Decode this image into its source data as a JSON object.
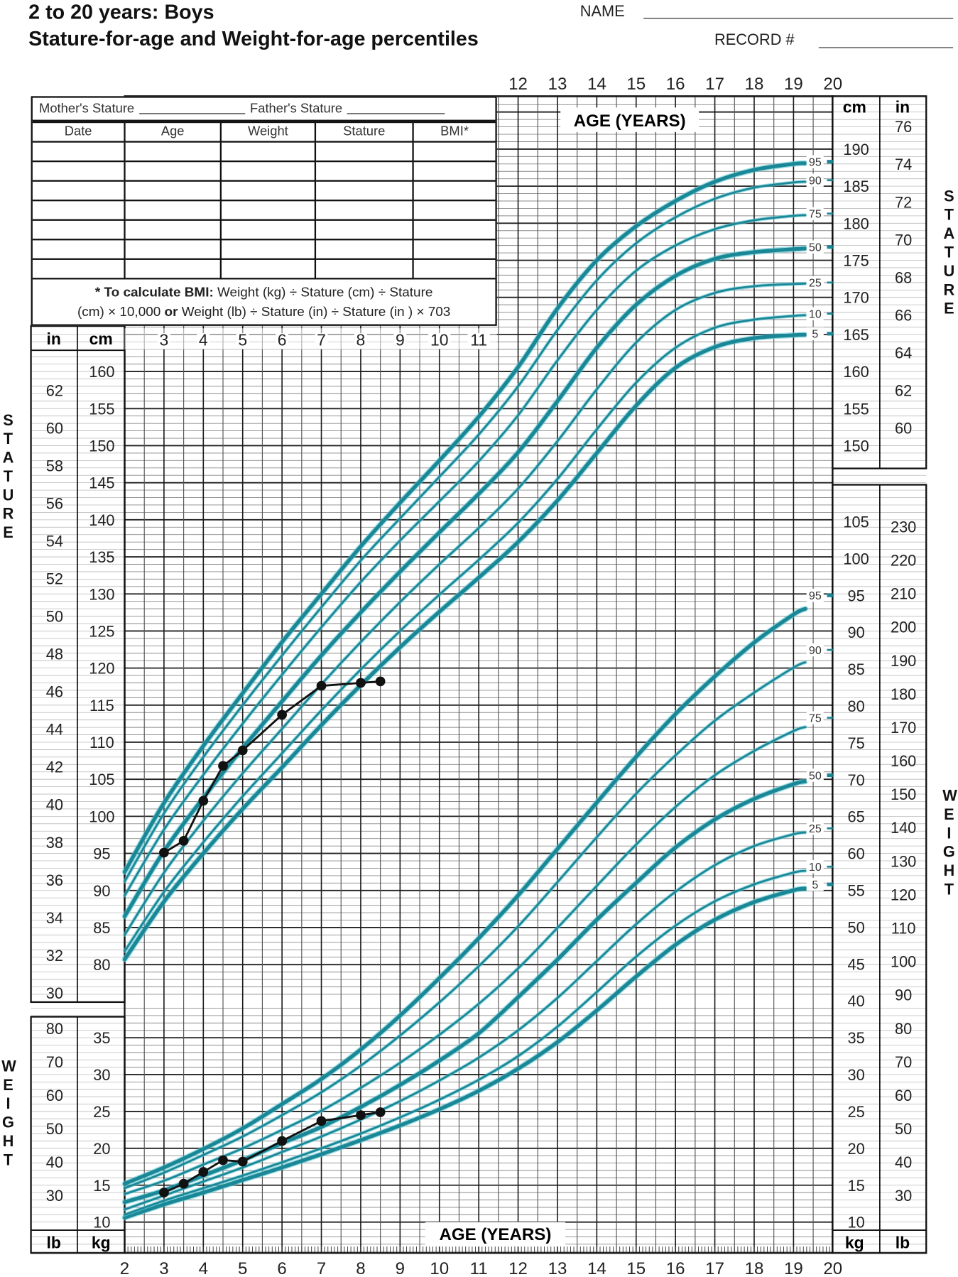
{
  "header": {
    "title_line1": "2 to 20 years: Boys",
    "title_line2": "Stature-for-age and Weight-for-age percentiles",
    "name_label": "NAME",
    "record_label": "RECORD #"
  },
  "table": {
    "mother_label": "Mother's Stature",
    "father_label": "Father's Stature",
    "columns": [
      "Date",
      "Age",
      "Weight",
      "Stature",
      "BMI*"
    ],
    "bmi_note_bold": "* To calculate BMI:",
    "bmi_note_line1": " Weight (kg) ÷ Stature (cm) ÷ Stature",
    "bmi_note_line2a": "(cm) × 10,000 ",
    "bmi_note_or": "or",
    "bmi_note_line2b": " Weight (lb) ÷ Stature (in) ÷ Stature (in ) × 703"
  },
  "labels": {
    "age_years_top": "AGE (YEARS)",
    "age_years_bottom": "AGE (YEARS)",
    "unit_in": "in",
    "unit_cm": "cm",
    "unit_lb": "lb",
    "unit_kg": "kg",
    "side_stature": "STATURE",
    "side_weight": "WEIGHT"
  },
  "colors": {
    "curve": "#1a8797",
    "curve_light": "#5fc6d2",
    "patient": "#111111"
  },
  "chart_data": {
    "type": "line",
    "title": "Stature-for-age and Weight-for-age percentiles",
    "xlabel": "AGE (YEARS)",
    "xlim": [
      2,
      20
    ],
    "ages": [
      2,
      3,
      4,
      5,
      6,
      7,
      8,
      9,
      10,
      11,
      12,
      13,
      14,
      15,
      16,
      17,
      18,
      19,
      20
    ],
    "top_age_ticks": [
      12,
      13,
      14,
      15,
      16,
      17,
      18,
      19,
      20
    ],
    "inner_age_ticks": [
      3,
      4,
      5,
      6,
      7,
      8,
      9,
      10,
      11
    ],
    "bottom_age_ticks": [
      2,
      3,
      4,
      5,
      6,
      7,
      8,
      9,
      10,
      11,
      12,
      13,
      14,
      15,
      16,
      17,
      18,
      19,
      20
    ],
    "stature": {
      "ylabel": "STATURE",
      "unit": "cm",
      "left_cm_ticks": [
        80,
        85,
        90,
        95,
        100,
        105,
        110,
        115,
        120,
        125,
        130,
        135,
        140,
        145,
        150,
        155,
        160
      ],
      "left_in_ticks": [
        30,
        32,
        34,
        36,
        38,
        40,
        42,
        44,
        46,
        48,
        50,
        52,
        54,
        56,
        58,
        60,
        62
      ],
      "right_cm_ticks": [
        150,
        155,
        160,
        165,
        170,
        175,
        180,
        185,
        190
      ],
      "right_in_ticks": [
        60,
        62,
        64,
        66,
        68,
        70,
        72,
        74,
        76
      ],
      "percentiles": [
        {
          "name": "5",
          "values": [
            80.7,
            88.5,
            95.0,
            101.0,
            106.6,
            112.3,
            117.7,
            122.8,
            127.6,
            132.2,
            137.0,
            142.6,
            149.0,
            155.4,
            160.5,
            163.3,
            164.5,
            164.9,
            165.1
          ]
        },
        {
          "name": "10",
          "values": [
            81.8,
            89.8,
            96.5,
            102.7,
            108.5,
            114.3,
            119.8,
            125.0,
            129.9,
            134.6,
            139.6,
            145.5,
            152.2,
            158.5,
            163.2,
            165.9,
            167.0,
            167.5,
            167.8
          ]
        },
        {
          "name": "25",
          "values": [
            84.0,
            92.4,
            99.4,
            105.8,
            111.8,
            117.8,
            123.5,
            128.9,
            134.0,
            138.9,
            144.2,
            150.6,
            157.6,
            163.9,
            168.3,
            170.6,
            171.5,
            171.8,
            172.0
          ]
        },
        {
          "name": "50",
          "values": [
            86.5,
            95.3,
            102.5,
            109.2,
            115.5,
            121.7,
            127.5,
            133.0,
            138.3,
            143.5,
            149.1,
            156.0,
            163.2,
            169.0,
            172.9,
            175.2,
            176.1,
            176.5,
            176.8
          ]
        },
        {
          "name": "75",
          "values": [
            89.3,
            98.2,
            105.6,
            112.5,
            119.1,
            125.5,
            131.6,
            137.2,
            142.5,
            147.9,
            154.1,
            161.5,
            168.3,
            173.6,
            177.0,
            179.2,
            180.4,
            181.0,
            181.3
          ]
        },
        {
          "name": "90",
          "values": [
            91.2,
            100.4,
            108.0,
            115.0,
            121.7,
            128.2,
            134.5,
            140.2,
            145.8,
            151.5,
            158.0,
            165.6,
            172.3,
            177.3,
            180.8,
            183.3,
            184.8,
            185.5,
            185.8
          ]
        },
        {
          "name": "95",
          "values": [
            92.5,
            101.8,
            109.5,
            116.6,
            123.5,
            130.0,
            136.4,
            142.3,
            148.0,
            153.9,
            160.6,
            168.5,
            175.0,
            179.6,
            183.0,
            185.6,
            187.2,
            188.0,
            188.3
          ]
        }
      ],
      "patient": {
        "ages": [
          3,
          3.5,
          4,
          4.5,
          5,
          6,
          7,
          8,
          8.5
        ],
        "values": [
          95.1,
          96.7,
          102.1,
          106.8,
          108.9,
          113.7,
          117.6,
          118.0,
          118.2
        ]
      }
    },
    "weight": {
      "ylabel": "WEIGHT",
      "unit": "kg",
      "left_kg_ticks": [
        10,
        15,
        20,
        25,
        30,
        35
      ],
      "left_lb_ticks": [
        30,
        40,
        50,
        60,
        70,
        80
      ],
      "right_kg_ticks": [
        10,
        15,
        20,
        25,
        30,
        35,
        40,
        45,
        50,
        55,
        60,
        65,
        70,
        75,
        80,
        85,
        90,
        95,
        100,
        105
      ],
      "right_lb_ticks": [
        30,
        40,
        50,
        60,
        70,
        80,
        90,
        100,
        110,
        120,
        130,
        140,
        150,
        160,
        170,
        180,
        190,
        200,
        210,
        220,
        230
      ],
      "percentiles": [
        {
          "name": "5",
          "values": [
            10.6,
            12.4,
            14.0,
            15.7,
            17.4,
            19.2,
            21.1,
            23.1,
            25.3,
            27.8,
            30.8,
            34.4,
            38.7,
            43.3,
            47.6,
            51.0,
            53.4,
            55.0,
            55.8
          ]
        },
        {
          "name": "10",
          "values": [
            11.0,
            12.9,
            14.6,
            16.3,
            18.1,
            20.0,
            22.0,
            24.2,
            26.6,
            29.3,
            32.5,
            36.5,
            41.2,
            46.0,
            50.2,
            53.5,
            55.8,
            57.4,
            58.2
          ]
        },
        {
          "name": "25",
          "values": [
            11.7,
            13.6,
            15.5,
            17.4,
            19.5,
            21.6,
            23.9,
            26.4,
            29.2,
            32.3,
            36.0,
            40.4,
            45.4,
            50.4,
            54.8,
            58.4,
            61.0,
            62.6,
            63.4
          ]
        },
        {
          "name": "50",
          "values": [
            12.7,
            14.3,
            16.3,
            18.4,
            20.7,
            22.9,
            25.6,
            28.6,
            31.9,
            35.6,
            40.5,
            45.6,
            51.0,
            56.0,
            60.8,
            64.6,
            67.4,
            69.4,
            70.6
          ]
        },
        {
          "name": "75",
          "values": [
            13.8,
            15.6,
            17.8,
            20.0,
            22.5,
            25.1,
            28.2,
            31.6,
            35.4,
            39.6,
            44.4,
            49.9,
            55.6,
            61.2,
            66.3,
            70.6,
            73.9,
            76.6,
            78.4
          ]
        },
        {
          "name": "90",
          "values": [
            14.6,
            16.7,
            19.1,
            21.6,
            24.5,
            27.6,
            31.2,
            35.3,
            39.8,
            44.7,
            50.1,
            56.1,
            62.2,
            68.1,
            73.3,
            78.0,
            81.8,
            85.2,
            87.6
          ]
        },
        {
          "name": "95",
          "values": [
            15.2,
            17.4,
            19.9,
            22.7,
            26.0,
            29.4,
            33.4,
            38.0,
            43.1,
            48.5,
            54.3,
            60.6,
            66.9,
            73.1,
            78.9,
            84.0,
            88.6,
            92.4,
            95.0
          ]
        }
      ],
      "patient": {
        "ages": [
          3,
          3.5,
          4,
          4.5,
          5,
          6,
          7,
          8,
          8.5
        ],
        "values": [
          14.0,
          15.2,
          16.8,
          18.4,
          18.2,
          21.0,
          23.7,
          24.5,
          24.9
        ]
      }
    }
  }
}
